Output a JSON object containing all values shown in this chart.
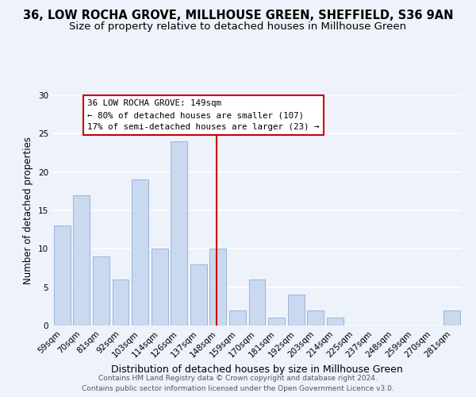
{
  "title1": "36, LOW ROCHA GROVE, MILLHOUSE GREEN, SHEFFIELD, S36 9AN",
  "title2": "Size of property relative to detached houses in Millhouse Green",
  "xlabel": "Distribution of detached houses by size in Millhouse Green",
  "ylabel": "Number of detached properties",
  "bar_labels": [
    "59sqm",
    "70sqm",
    "81sqm",
    "92sqm",
    "103sqm",
    "114sqm",
    "126sqm",
    "137sqm",
    "148sqm",
    "159sqm",
    "170sqm",
    "181sqm",
    "192sqm",
    "203sqm",
    "214sqm",
    "225sqm",
    "237sqm",
    "248sqm",
    "259sqm",
    "270sqm",
    "281sqm"
  ],
  "bar_values": [
    13,
    17,
    9,
    6,
    19,
    10,
    24,
    8,
    10,
    2,
    6,
    1,
    4,
    2,
    1,
    0,
    0,
    0,
    0,
    0,
    2
  ],
  "bar_color": "#c9d9f0",
  "bar_edge_color": "#9ab4d8",
  "vline_color": "#cc0000",
  "vline_index": 8,
  "annotation_title": "36 LOW ROCHA GROVE: 149sqm",
  "annotation_line1": "← 80% of detached houses are smaller (107)",
  "annotation_line2": "17% of semi-detached houses are larger (23) →",
  "annotation_box_color": "#ffffff",
  "annotation_box_edge": "#cc0000",
  "ylim": [
    0,
    30
  ],
  "yticks": [
    0,
    5,
    10,
    15,
    20,
    25,
    30
  ],
  "footer1": "Contains HM Land Registry data © Crown copyright and database right 2024.",
  "footer2": "Contains public sector information licensed under the Open Government Licence v3.0.",
  "background_color": "#eef2fb",
  "grid_color": "#ffffff",
  "title1_fontsize": 10.5,
  "title2_fontsize": 9.5,
  "xlabel_fontsize": 9,
  "ylabel_fontsize": 8.5,
  "tick_fontsize": 7.5,
  "footer_fontsize": 6.5
}
